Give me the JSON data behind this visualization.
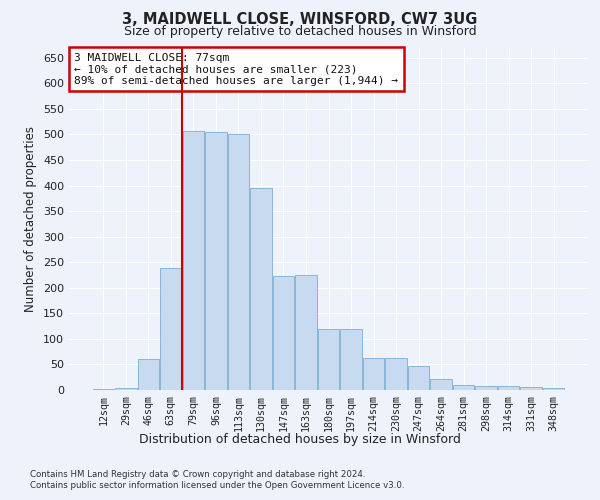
{
  "title_line1": "3, MAIDWELL CLOSE, WINSFORD, CW7 3UG",
  "title_line2": "Size of property relative to detached houses in Winsford",
  "xlabel": "Distribution of detached houses by size in Winsford",
  "ylabel": "Number of detached properties",
  "bin_labels": [
    "12sqm",
    "29sqm",
    "46sqm",
    "63sqm",
    "79sqm",
    "96sqm",
    "113sqm",
    "130sqm",
    "147sqm",
    "163sqm",
    "180sqm",
    "197sqm",
    "214sqm",
    "230sqm",
    "247sqm",
    "264sqm",
    "281sqm",
    "298sqm",
    "314sqm",
    "331sqm",
    "348sqm"
  ],
  "bar_values": [
    2,
    3,
    60,
    238,
    507,
    505,
    500,
    395,
    223,
    224,
    120,
    120,
    62,
    62,
    47,
    22,
    10,
    8,
    8,
    5,
    3
  ],
  "bar_color": "#c8daf0",
  "bar_edge_color": "#7bafd4",
  "vline_x_index": 4,
  "vline_color": "#cc0000",
  "annotation_line1": "3 MAIDWELL CLOSE: 77sqm",
  "annotation_line2": "← 10% of detached houses are smaller (223)",
  "annotation_line3": "89% of semi-detached houses are larger (1,944) →",
  "annotation_box_color": "#cc0000",
  "ylim": [
    0,
    670
  ],
  "yticks": [
    0,
    50,
    100,
    150,
    200,
    250,
    300,
    350,
    400,
    450,
    500,
    550,
    600,
    650
  ],
  "footnote1": "Contains HM Land Registry data © Crown copyright and database right 2024.",
  "footnote2": "Contains public sector information licensed under the Open Government Licence v3.0.",
  "bg_color": "#eef2fb",
  "plot_bg_color": "#eef2fb"
}
